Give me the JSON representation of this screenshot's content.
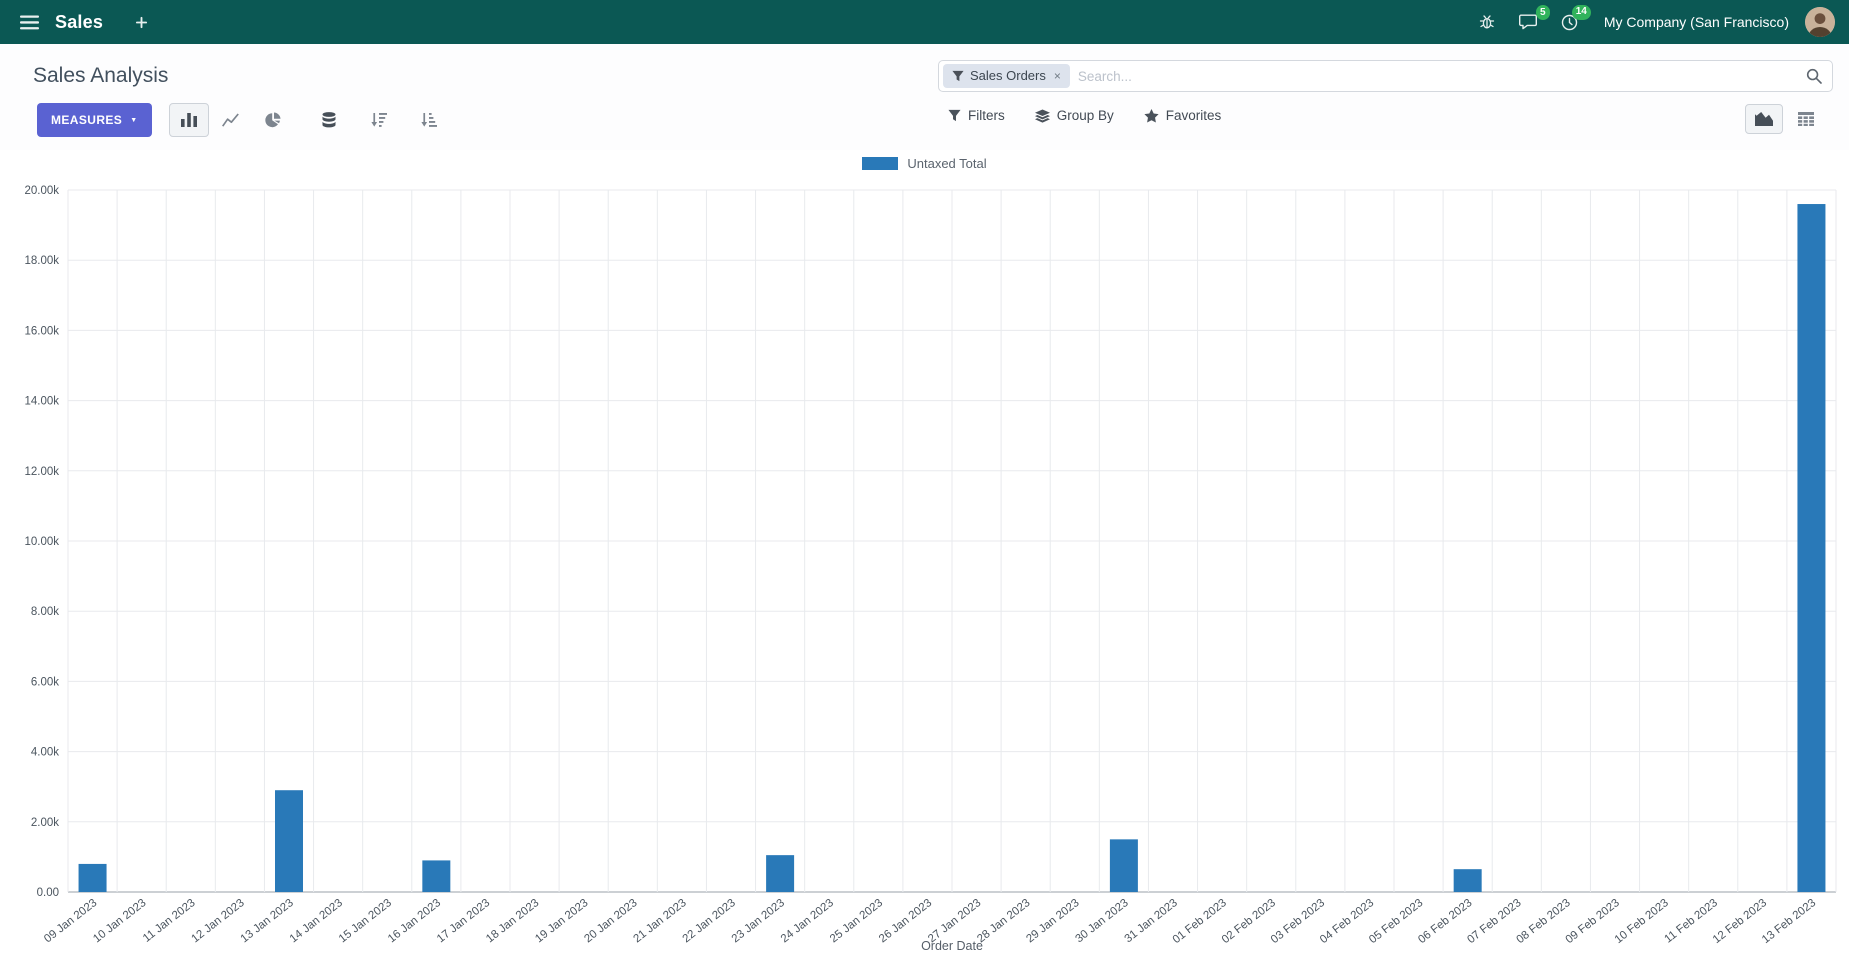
{
  "navbar": {
    "app_name": "Sales",
    "company_name": "My Company (San Francisco)",
    "messages_badge": "5",
    "activities_badge": "14"
  },
  "control_panel": {
    "title": "Sales Analysis",
    "measures_label": "MEASURES",
    "search": {
      "placeholder": "Search...",
      "facet": {
        "label": "Sales Orders",
        "remove": "×"
      }
    },
    "buttons": {
      "filters": "Filters",
      "group_by": "Group By",
      "favorites": "Favorites"
    }
  },
  "icons": {
    "menu": "hamburger",
    "new_tab": "plus",
    "debug": "bug",
    "messages": "chat-bubble",
    "activities": "clock",
    "facet": "funnel",
    "search": "magnifier",
    "measures_caret": "caret-down",
    "chart_bar": "bar-chart",
    "chart_line": "line-chart",
    "chart_pie": "pie-chart",
    "stacked": "database",
    "sort_desc": "sort-amount-desc",
    "sort_asc": "sort-amount-asc",
    "filters": "funnel",
    "group_by": "layers",
    "favorites": "star",
    "view_graph": "area-chart",
    "view_pivot": "pivot-grid"
  },
  "colors": {
    "navbar_bg": "#0b5854",
    "primary_button": "#5a62d2",
    "badge_green": "#31b35c",
    "bar_blue": "#2979b8"
  },
  "chart_data": {
    "type": "bar",
    "title": "",
    "xlabel": "Order Date",
    "ylabel": "",
    "ylim": [
      0,
      20000
    ],
    "ytick_step": 2000,
    "ytick_labels": [
      "0.00",
      "2.00k",
      "4.00k",
      "6.00k",
      "8.00k",
      "10.00k",
      "12.00k",
      "14.00k",
      "16.00k",
      "18.00k",
      "20.00k"
    ],
    "grid": true,
    "legend_position": "top",
    "categories": [
      "09 Jan 2023",
      "10 Jan 2023",
      "11 Jan 2023",
      "12 Jan 2023",
      "13 Jan 2023",
      "14 Jan 2023",
      "15 Jan 2023",
      "16 Jan 2023",
      "17 Jan 2023",
      "18 Jan 2023",
      "19 Jan 2023",
      "20 Jan 2023",
      "21 Jan 2023",
      "22 Jan 2023",
      "23 Jan 2023",
      "24 Jan 2023",
      "25 Jan 2023",
      "26 Jan 2023",
      "27 Jan 2023",
      "28 Jan 2023",
      "29 Jan 2023",
      "30 Jan 2023",
      "31 Jan 2023",
      "01 Feb 2023",
      "02 Feb 2023",
      "03 Feb 2023",
      "04 Feb 2023",
      "05 Feb 2023",
      "06 Feb 2023",
      "07 Feb 2023",
      "08 Feb 2023",
      "09 Feb 2023",
      "10 Feb 2023",
      "11 Feb 2023",
      "12 Feb 2023",
      "13 Feb 2023"
    ],
    "series": [
      {
        "name": "Untaxed Total",
        "color": "#2979b8",
        "values": [
          800,
          0,
          0,
          0,
          2900,
          0,
          0,
          900,
          0,
          0,
          0,
          0,
          0,
          0,
          1050,
          0,
          0,
          0,
          0,
          0,
          0,
          1500,
          0,
          0,
          0,
          0,
          0,
          0,
          650,
          0,
          0,
          0,
          0,
          0,
          0,
          19600
        ]
      }
    ]
  }
}
